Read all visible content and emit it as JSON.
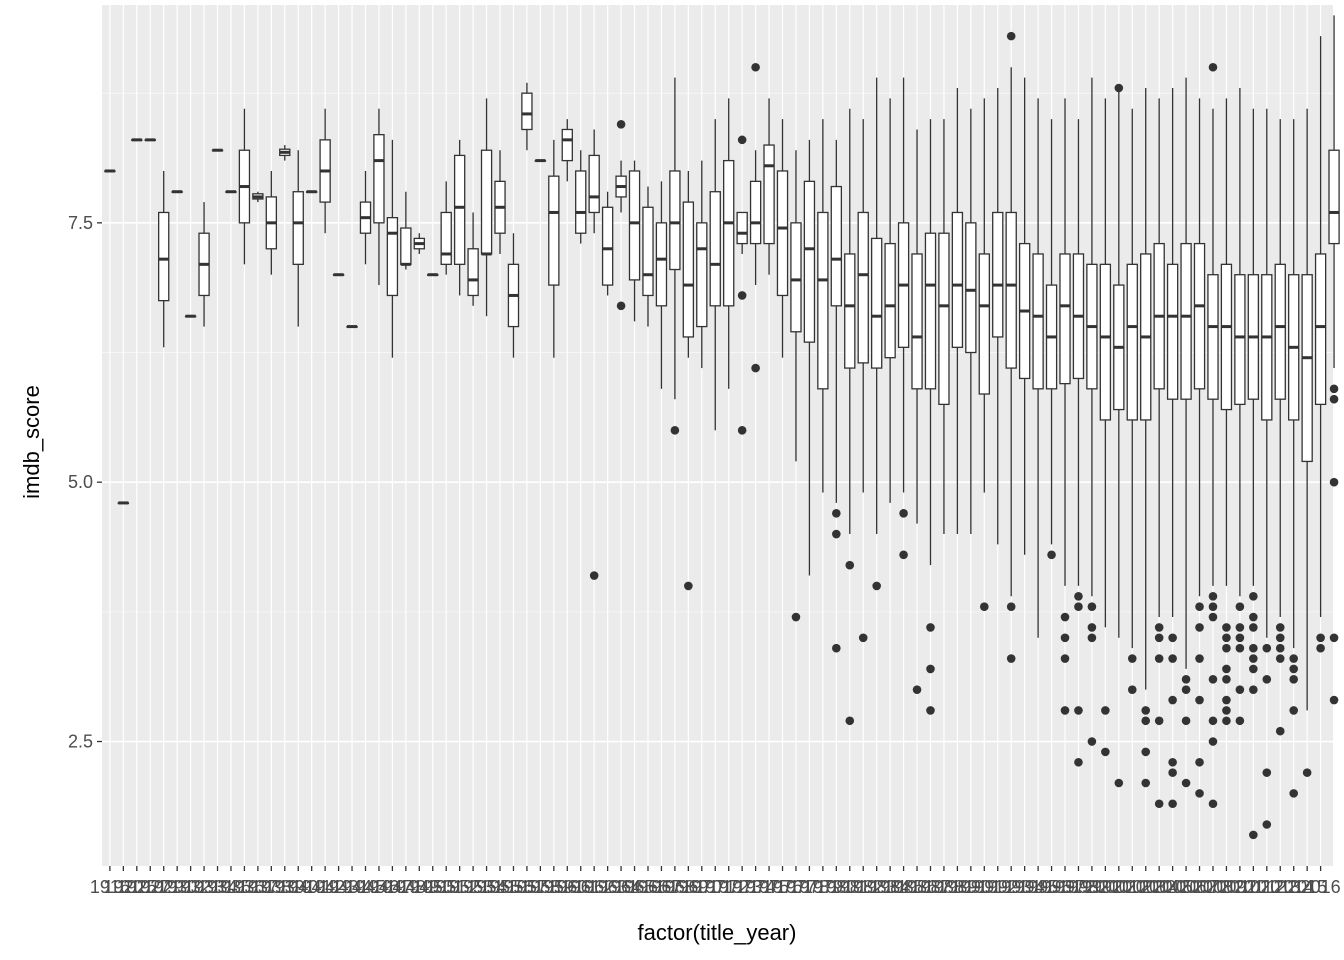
{
  "chart_data": {
    "type": "boxplot",
    "xlabel": "factor(title_year)",
    "ylabel": "imdb_score",
    "ylim": [
      1.3,
      9.6
    ],
    "yticks": [
      2.5,
      5.0,
      7.5
    ],
    "ytick_labels": [
      "2.5",
      "5.0",
      "7.5"
    ],
    "x_tick_labels_visible": "1916 to 2016 (overlapping, illegible)",
    "grid": true,
    "panel_background": "#ebebeb",
    "box_fill": "#ffffff",
    "line_color": "#333333",
    "categories": [
      "1916",
      "1920",
      "1925",
      "1927",
      "1929",
      "1930",
      "1932",
      "1933",
      "1934",
      "1935",
      "1936",
      "1937",
      "1938",
      "1939",
      "1940",
      "1941",
      "1942",
      "1943",
      "1944",
      "1945",
      "1946",
      "1947",
      "1948",
      "1949",
      "1950",
      "1951",
      "1952",
      "1953",
      "1954",
      "1955",
      "1956",
      "1957",
      "1958",
      "1959",
      "1960",
      "1961",
      "1962",
      "1963",
      "1964",
      "1965",
      "1966",
      "1967",
      "1968",
      "1969",
      "1970",
      "1971",
      "1972",
      "1973",
      "1974",
      "1975",
      "1976",
      "1977",
      "1978",
      "1979",
      "1980",
      "1981",
      "1982",
      "1983",
      "1984",
      "1985",
      "1986",
      "1987",
      "1988",
      "1989",
      "1990",
      "1991",
      "1992",
      "1993",
      "1994",
      "1995",
      "1996",
      "1997",
      "1998",
      "1999",
      "2000",
      "2001",
      "2002",
      "2003",
      "2004",
      "2005",
      "2006",
      "2007",
      "2008",
      "2009",
      "2010",
      "2011",
      "2012",
      "2013",
      "2014",
      "2015",
      "2016"
    ],
    "boxes": [
      {
        "wl": 8.0,
        "q1": 8.0,
        "med": 8.0,
        "q3": 8.0,
        "wh": 8.0,
        "out": []
      },
      {
        "wl": 4.8,
        "q1": 4.8,
        "med": 4.8,
        "q3": 4.8,
        "wh": 4.8,
        "out": []
      },
      {
        "wl": 8.3,
        "q1": 8.3,
        "med": 8.3,
        "q3": 8.3,
        "wh": 8.3,
        "out": []
      },
      {
        "wl": 8.3,
        "q1": 8.3,
        "med": 8.3,
        "q3": 8.3,
        "wh": 8.3,
        "out": []
      },
      {
        "wl": 6.3,
        "q1": 6.75,
        "med": 7.15,
        "q3": 7.6,
        "wh": 8.0,
        "out": []
      },
      {
        "wl": 7.8,
        "q1": 7.8,
        "med": 7.8,
        "q3": 7.8,
        "wh": 7.8,
        "out": []
      },
      {
        "wl": 6.6,
        "q1": 6.6,
        "med": 6.6,
        "q3": 6.6,
        "wh": 6.6,
        "out": []
      },
      {
        "wl": 6.5,
        "q1": 6.8,
        "med": 7.1,
        "q3": 7.4,
        "wh": 7.7,
        "out": []
      },
      {
        "wl": 8.2,
        "q1": 8.2,
        "med": 8.2,
        "q3": 8.2,
        "wh": 8.2,
        "out": []
      },
      {
        "wl": 7.8,
        "q1": 7.8,
        "med": 7.8,
        "q3": 7.8,
        "wh": 7.8,
        "out": []
      },
      {
        "wl": 7.1,
        "q1": 7.5,
        "med": 7.85,
        "q3": 8.2,
        "wh": 8.6,
        "out": []
      },
      {
        "wl": 7.7,
        "q1": 7.73,
        "med": 7.75,
        "q3": 7.78,
        "wh": 7.8,
        "out": []
      },
      {
        "wl": 7.0,
        "q1": 7.25,
        "med": 7.5,
        "q3": 7.75,
        "wh": 8.0,
        "out": []
      },
      {
        "wl": 8.1,
        "q1": 8.15,
        "med": 8.18,
        "q3": 8.21,
        "wh": 8.25,
        "out": []
      },
      {
        "wl": 6.5,
        "q1": 7.1,
        "med": 7.5,
        "q3": 7.8,
        "wh": 8.2,
        "out": []
      },
      {
        "wl": 7.8,
        "q1": 7.8,
        "med": 7.8,
        "q3": 7.8,
        "wh": 7.8,
        "out": []
      },
      {
        "wl": 7.4,
        "q1": 7.7,
        "med": 8.0,
        "q3": 8.3,
        "wh": 8.6,
        "out": []
      },
      {
        "wl": 7.0,
        "q1": 7.0,
        "med": 7.0,
        "q3": 7.0,
        "wh": 7.0,
        "out": []
      },
      {
        "wl": 6.5,
        "q1": 6.5,
        "med": 6.5,
        "q3": 6.5,
        "wh": 6.5,
        "out": []
      },
      {
        "wl": 7.1,
        "q1": 7.4,
        "med": 7.55,
        "q3": 7.7,
        "wh": 8.0,
        "out": []
      },
      {
        "wl": 6.9,
        "q1": 7.5,
        "med": 8.1,
        "q3": 8.35,
        "wh": 8.6,
        "out": []
      },
      {
        "wl": 6.2,
        "q1": 6.8,
        "med": 7.4,
        "q3": 7.55,
        "wh": 8.3,
        "out": []
      },
      {
        "wl": 7.05,
        "q1": 7.1,
        "med": 7.1,
        "q3": 7.45,
        "wh": 7.8,
        "out": []
      },
      {
        "wl": 7.2,
        "q1": 7.25,
        "med": 7.3,
        "q3": 7.35,
        "wh": 7.4,
        "out": []
      },
      {
        "wl": 7.0,
        "q1": 7.0,
        "med": 7.0,
        "q3": 7.0,
        "wh": 7.0,
        "out": []
      },
      {
        "wl": 7.0,
        "q1": 7.1,
        "med": 7.2,
        "q3": 7.6,
        "wh": 7.9,
        "out": []
      },
      {
        "wl": 6.8,
        "q1": 7.1,
        "med": 7.65,
        "q3": 8.15,
        "wh": 8.3,
        "out": []
      },
      {
        "wl": 6.7,
        "q1": 6.8,
        "med": 6.95,
        "q3": 7.25,
        "wh": 7.6,
        "out": []
      },
      {
        "wl": 6.6,
        "q1": 7.2,
        "med": 7.2,
        "q3": 8.2,
        "wh": 8.7,
        "out": []
      },
      {
        "wl": 7.2,
        "q1": 7.4,
        "med": 7.65,
        "q3": 7.9,
        "wh": 8.2,
        "out": []
      },
      {
        "wl": 6.2,
        "q1": 6.5,
        "med": 6.8,
        "q3": 7.1,
        "wh": 7.4,
        "out": []
      },
      {
        "wl": 8.2,
        "q1": 8.4,
        "med": 8.55,
        "q3": 8.75,
        "wh": 8.85,
        "out": []
      },
      {
        "wl": 8.1,
        "q1": 8.1,
        "med": 8.1,
        "q3": 8.1,
        "wh": 8.1,
        "out": []
      },
      {
        "wl": 6.2,
        "q1": 6.9,
        "med": 7.6,
        "q3": 7.95,
        "wh": 8.3,
        "out": []
      },
      {
        "wl": 7.9,
        "q1": 8.1,
        "med": 8.3,
        "q3": 8.4,
        "wh": 8.5,
        "out": []
      },
      {
        "wl": 7.3,
        "q1": 7.4,
        "med": 7.6,
        "q3": 8.0,
        "wh": 8.2,
        "out": []
      },
      {
        "wl": 7.4,
        "q1": 7.6,
        "med": 7.75,
        "q3": 8.15,
        "wh": 8.4,
        "out": [
          4.1
        ]
      },
      {
        "wl": 6.8,
        "q1": 6.9,
        "med": 7.25,
        "q3": 7.65,
        "wh": 7.8,
        "out": []
      },
      {
        "wl": 7.6,
        "q1": 7.75,
        "med": 7.85,
        "q3": 7.95,
        "wh": 8.1,
        "out": [
          8.45,
          6.7
        ]
      },
      {
        "wl": 6.55,
        "q1": 6.95,
        "med": 7.5,
        "q3": 8.0,
        "wh": 8.1,
        "out": []
      },
      {
        "wl": 6.5,
        "q1": 6.8,
        "med": 7.0,
        "q3": 7.65,
        "wh": 7.85,
        "out": []
      },
      {
        "wl": 5.9,
        "q1": 6.7,
        "med": 7.15,
        "q3": 7.5,
        "wh": 7.9,
        "out": []
      },
      {
        "wl": 5.8,
        "q1": 7.05,
        "med": 7.5,
        "q3": 8.0,
        "wh": 8.9,
        "out": [
          5.5
        ]
      },
      {
        "wl": 6.2,
        "q1": 6.4,
        "med": 6.9,
        "q3": 7.7,
        "wh": 8.0,
        "out": [
          4.0
        ]
      },
      {
        "wl": 6.1,
        "q1": 6.5,
        "med": 7.25,
        "q3": 7.5,
        "wh": 8.1,
        "out": []
      },
      {
        "wl": 5.5,
        "q1": 6.7,
        "med": 7.1,
        "q3": 7.8,
        "wh": 8.5,
        "out": []
      },
      {
        "wl": 5.9,
        "q1": 6.7,
        "med": 7.5,
        "q3": 8.1,
        "wh": 8.7,
        "out": []
      },
      {
        "wl": 7.2,
        "q1": 7.3,
        "med": 7.4,
        "q3": 7.6,
        "wh": 7.6,
        "out": [
          8.3,
          6.8,
          5.5
        ]
      },
      {
        "wl": 6.9,
        "q1": 7.3,
        "med": 7.5,
        "q3": 7.9,
        "wh": 8.2,
        "out": [
          9.0,
          6.1
        ]
      },
      {
        "wl": 7.0,
        "q1": 7.3,
        "med": 8.05,
        "q3": 8.25,
        "wh": 8.7,
        "out": []
      },
      {
        "wl": 6.2,
        "q1": 6.8,
        "med": 7.45,
        "q3": 8.0,
        "wh": 8.5,
        "out": []
      },
      {
        "wl": 5.2,
        "q1": 6.45,
        "med": 6.95,
        "q3": 7.5,
        "wh": 8.2,
        "out": [
          3.7
        ]
      },
      {
        "wl": 4.1,
        "q1": 6.35,
        "med": 7.25,
        "q3": 7.9,
        "wh": 8.3,
        "out": []
      },
      {
        "wl": 4.9,
        "q1": 5.9,
        "med": 6.95,
        "q3": 7.6,
        "wh": 8.5,
        "out": []
      },
      {
        "wl": 4.8,
        "q1": 6.7,
        "med": 7.15,
        "q3": 7.85,
        "wh": 8.3,
        "out": [
          4.7,
          4.5,
          3.4
        ]
      },
      {
        "wl": 4.5,
        "q1": 6.1,
        "med": 6.7,
        "q3": 7.2,
        "wh": 8.6,
        "out": [
          4.2,
          2.7
        ]
      },
      {
        "wl": 4.9,
        "q1": 6.15,
        "med": 7.0,
        "q3": 7.6,
        "wh": 8.5,
        "out": [
          3.5
        ]
      },
      {
        "wl": 4.5,
        "q1": 6.1,
        "med": 6.6,
        "q3": 7.35,
        "wh": 8.9,
        "out": [
          4.0
        ]
      },
      {
        "wl": 4.8,
        "q1": 6.2,
        "med": 6.7,
        "q3": 7.3,
        "wh": 8.7,
        "out": []
      },
      {
        "wl": 4.9,
        "q1": 6.3,
        "med": 6.9,
        "q3": 7.5,
        "wh": 8.9,
        "out": [
          4.7,
          4.3
        ]
      },
      {
        "wl": 4.6,
        "q1": 5.9,
        "med": 6.4,
        "q3": 7.2,
        "wh": 8.4,
        "out": [
          3.0
        ]
      },
      {
        "wl": 4.2,
        "q1": 5.9,
        "med": 6.9,
        "q3": 7.4,
        "wh": 8.5,
        "out": [
          3.6,
          3.2,
          2.8
        ]
      },
      {
        "wl": 4.5,
        "q1": 5.75,
        "med": 6.7,
        "q3": 7.4,
        "wh": 8.5,
        "out": []
      },
      {
        "wl": 4.5,
        "q1": 6.3,
        "med": 6.9,
        "q3": 7.6,
        "wh": 8.8,
        "out": []
      },
      {
        "wl": 4.5,
        "q1": 6.25,
        "med": 6.85,
        "q3": 7.5,
        "wh": 8.6,
        "out": []
      },
      {
        "wl": 4.9,
        "q1": 5.85,
        "med": 6.7,
        "q3": 7.2,
        "wh": 8.7,
        "out": [
          3.8
        ]
      },
      {
        "wl": 4.4,
        "q1": 6.4,
        "med": 6.9,
        "q3": 7.6,
        "wh": 8.8,
        "out": []
      },
      {
        "wl": 3.9,
        "q1": 6.1,
        "med": 6.9,
        "q3": 7.6,
        "wh": 9.0,
        "out": [
          9.3,
          3.8,
          3.3
        ]
      },
      {
        "wl": 4.3,
        "q1": 6.0,
        "med": 6.65,
        "q3": 7.3,
        "wh": 8.9,
        "out": []
      },
      {
        "wl": 3.5,
        "q1": 5.9,
        "med": 6.6,
        "q3": 7.2,
        "wh": 8.7,
        "out": []
      },
      {
        "wl": 4.4,
        "q1": 5.9,
        "med": 6.4,
        "q3": 6.9,
        "wh": 8.5,
        "out": [
          4.3
        ]
      },
      {
        "wl": 4.0,
        "q1": 5.95,
        "med": 6.7,
        "q3": 7.2,
        "wh": 8.7,
        "out": [
          3.7,
          3.5,
          3.3,
          2.8
        ]
      },
      {
        "wl": 4.0,
        "q1": 6.0,
        "med": 6.6,
        "q3": 7.2,
        "wh": 8.5,
        "out": [
          3.9,
          3.8,
          2.8,
          2.3
        ]
      },
      {
        "wl": 3.9,
        "q1": 5.9,
        "med": 6.5,
        "q3": 7.1,
        "wh": 8.9,
        "out": [
          3.8,
          3.6,
          3.5,
          2.5
        ]
      },
      {
        "wl": 3.6,
        "q1": 5.6,
        "med": 6.4,
        "q3": 7.1,
        "wh": 8.7,
        "out": [
          2.8,
          2.4
        ]
      },
      {
        "wl": 3.5,
        "q1": 5.7,
        "med": 6.3,
        "q3": 6.9,
        "wh": 8.8,
        "out": [
          8.8,
          2.1
        ]
      },
      {
        "wl": 3.4,
        "q1": 5.6,
        "med": 6.5,
        "q3": 7.1,
        "wh": 8.6,
        "out": [
          3.3,
          3.0
        ]
      },
      {
        "wl": 3.0,
        "q1": 5.6,
        "med": 6.4,
        "q3": 7.2,
        "wh": 8.8,
        "out": [
          2.8,
          2.7,
          2.4,
          2.1
        ]
      },
      {
        "wl": 3.7,
        "q1": 5.9,
        "med": 6.6,
        "q3": 7.3,
        "wh": 8.7,
        "out": [
          3.6,
          3.5,
          3.3,
          2.7,
          1.9
        ]
      },
      {
        "wl": 3.7,
        "q1": 5.8,
        "med": 6.6,
        "q3": 7.1,
        "wh": 8.8,
        "out": [
          3.5,
          3.3,
          2.9,
          2.3,
          2.2,
          1.9
        ]
      },
      {
        "wl": 3.2,
        "q1": 5.8,
        "med": 6.6,
        "q3": 7.3,
        "wh": 8.9,
        "out": [
          3.1,
          3.0,
          2.7,
          2.1
        ]
      },
      {
        "wl": 3.9,
        "q1": 5.9,
        "med": 6.7,
        "q3": 7.3,
        "wh": 8.7,
        "out": [
          3.8,
          3.6,
          3.3,
          2.9,
          2.3,
          2.0
        ]
      },
      {
        "wl": 4.0,
        "q1": 5.8,
        "med": 6.5,
        "q3": 7.0,
        "wh": 8.6,
        "out": [
          9.0,
          3.9,
          3.8,
          3.7,
          3.1,
          2.7,
          2.5,
          1.9
        ]
      },
      {
        "wl": 4.0,
        "q1": 5.7,
        "med": 6.5,
        "q3": 7.1,
        "wh": 8.7,
        "out": [
          3.6,
          3.5,
          3.4,
          3.2,
          3.1,
          2.9,
          2.8,
          2.7
        ]
      },
      {
        "wl": 3.9,
        "q1": 5.75,
        "med": 6.4,
        "q3": 7.0,
        "wh": 8.8,
        "out": [
          3.8,
          3.6,
          3.5,
          3.4,
          3.0,
          2.7
        ]
      },
      {
        "wl": 4.0,
        "q1": 5.8,
        "med": 6.4,
        "q3": 7.0,
        "wh": 8.6,
        "out": [
          3.9,
          3.7,
          3.6,
          3.4,
          3.3,
          3.2,
          3.0,
          1.6
        ]
      },
      {
        "wl": 3.5,
        "q1": 5.6,
        "med": 6.4,
        "q3": 7.0,
        "wh": 8.6,
        "out": [
          3.4,
          3.1,
          2.2,
          1.7
        ]
      },
      {
        "wl": 3.7,
        "q1": 5.8,
        "med": 6.5,
        "q3": 7.1,
        "wh": 8.5,
        "out": [
          3.6,
          3.5,
          3.4,
          3.3,
          2.6
        ]
      },
      {
        "wl": 3.4,
        "q1": 5.6,
        "med": 6.3,
        "q3": 7.0,
        "wh": 8.5,
        "out": [
          3.3,
          3.2,
          3.1,
          2.8,
          2.0
        ]
      },
      {
        "wl": 2.8,
        "q1": 5.2,
        "med": 6.2,
        "q3": 7.0,
        "wh": 8.6,
        "out": [
          2.2
        ]
      },
      {
        "wl": 3.7,
        "q1": 5.75,
        "med": 6.5,
        "q3": 7.2,
        "wh": 9.3,
        "out": [
          3.5,
          3.4
        ]
      },
      {
        "wl": 6.1,
        "q1": 7.3,
        "med": 7.6,
        "q3": 8.2,
        "wh": 9.5,
        "out": [
          5.9,
          5.8,
          5.0,
          3.5,
          2.9
        ]
      }
    ]
  }
}
